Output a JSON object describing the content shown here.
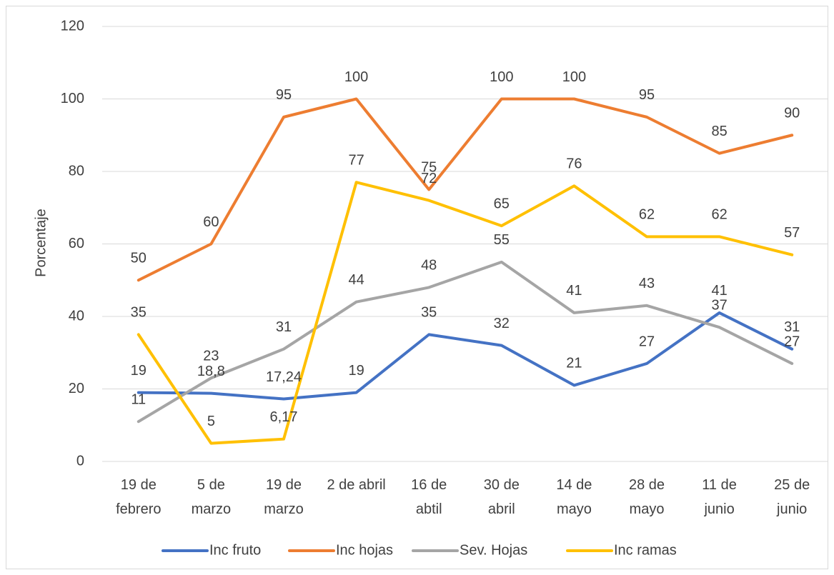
{
  "chart_data": {
    "type": "line",
    "ylabel": "Porcentaje",
    "categories": [
      "19 de febrero",
      "5 de marzo",
      "19 de marzo",
      "2 de abril",
      "16 de abtil",
      "30 de abril",
      "14 de mayo",
      "28 de mayo",
      "11 de junio",
      "25 de junio"
    ],
    "series": [
      {
        "name": "Inc fruto",
        "color": "#4472c4",
        "values": [
          19,
          18.8,
          17.24,
          19,
          35,
          32,
          21,
          27,
          41,
          31
        ],
        "value_labels": [
          "19",
          "18,8",
          "17,24",
          "19",
          "35",
          "32",
          "21",
          "27",
          "41",
          "31"
        ]
      },
      {
        "name": "Inc hojas",
        "color": "#ed7d31",
        "values": [
          50,
          60,
          95,
          100,
          75,
          100,
          100,
          95,
          85,
          90
        ]
      },
      {
        "name": "Sev. Hojas",
        "color": "#a5a5a5",
        "values": [
          11,
          23,
          31,
          44,
          48,
          55,
          41,
          43,
          37,
          27
        ]
      },
      {
        "name": "Inc ramas",
        "color": "#ffc000",
        "values": [
          35,
          5,
          6.17,
          77,
          72,
          65,
          76,
          62,
          62,
          57
        ],
        "value_labels": [
          "35",
          "5",
          "6,17",
          "77",
          "72",
          "65",
          "76",
          "62",
          "62",
          "57"
        ]
      }
    ],
    "ylim": [
      0,
      120
    ],
    "yticks": [
      0,
      20,
      40,
      60,
      80,
      100,
      120
    ],
    "grid": true,
    "legend": "bottom"
  }
}
